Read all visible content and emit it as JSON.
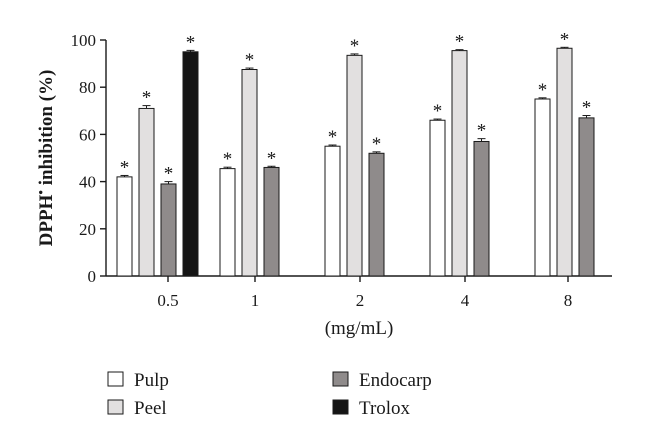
{
  "chart_data": {
    "type": "bar",
    "categories": [
      "0.5",
      "1",
      "2",
      "4",
      "8"
    ],
    "xlabel": "(mg/mL)",
    "ylabel": "DPPH",
    "ylabel_sup": "•",
    "ylabel_rest": " inhibition (%)",
    "ylim": [
      0,
      100
    ],
    "yticks": [
      0,
      20,
      40,
      60,
      80,
      100
    ],
    "grid": false,
    "legend_position": "bottom",
    "significance_marker": "*",
    "series": [
      {
        "name": "Pulp",
        "color": "#ffffff",
        "values": [
          42,
          45.5,
          55,
          66,
          75
        ],
        "errors": [
          0.6,
          0.6,
          0.5,
          0.5,
          0.5
        ]
      },
      {
        "name": "Peel",
        "color": "#e2e0e0",
        "values": [
          71,
          87.5,
          93.5,
          95.5,
          96.5
        ],
        "errors": [
          1.2,
          0.6,
          0.6,
          0.4,
          0.4
        ]
      },
      {
        "name": "Endocarp",
        "color": "#8f8b8b",
        "values": [
          39,
          46,
          52,
          57,
          67
        ],
        "errors": [
          1.0,
          0.5,
          0.6,
          1.2,
          1.0
        ]
      },
      {
        "name": "Trolox",
        "color": "#151515",
        "values": [
          95,
          null,
          null,
          null,
          null
        ],
        "errors": [
          0.6,
          null,
          null,
          null,
          null
        ]
      }
    ]
  }
}
